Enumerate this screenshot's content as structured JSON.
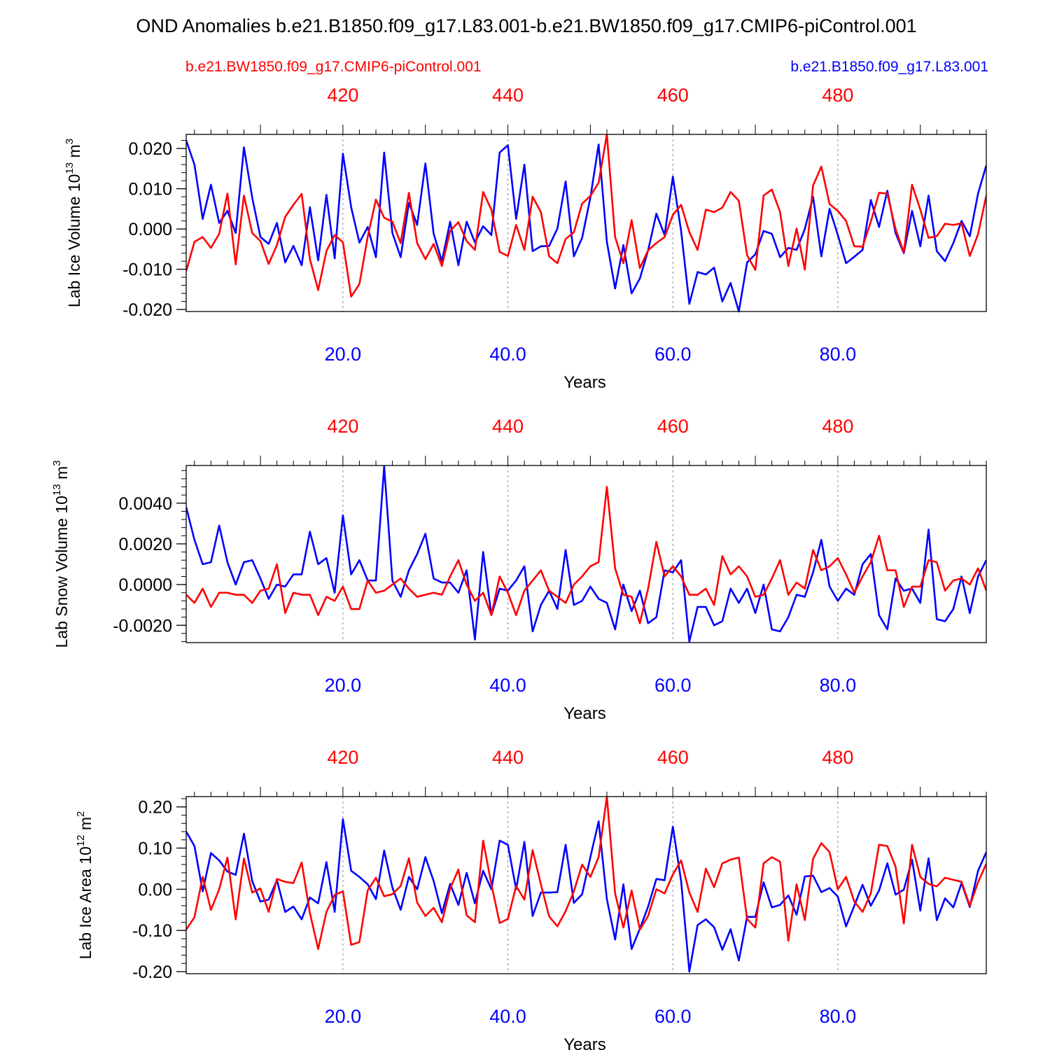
{
  "title": "OND Anomalies b.e21.B1850.f09_g17.L83.001-b.e21.BW1850.f09_g17.CMIP6-piControl.001",
  "legend": {
    "red_label": "b.e21.BW1850.f09_g17.CMIP6-piControl.001",
    "blue_label": "b.e21.B1850.f09_g17.L83.001"
  },
  "colors": {
    "red": "#ff0000",
    "blue": "#0000ff",
    "axis": "#000000",
    "grid": "#888888"
  },
  "chart_data": [
    {
      "type": "line",
      "ylabel_base": "Lab Ice Volume 10",
      "ylabel_exp": "13",
      "ylabel_unit": " m",
      "ylabel_unit_exp": "3",
      "xlabel": "Years",
      "xlim": [
        1,
        98
      ],
      "ylim": [
        -0.0205,
        0.0235
      ],
      "yticks": [
        -0.02,
        -0.01,
        0.0,
        0.01,
        0.02
      ],
      "yticklabels": [
        "-0.020",
        "-0.010",
        "0.000",
        "0.010",
        "0.020"
      ],
      "xticks_bottom": [
        20,
        40,
        60,
        80
      ],
      "xticklabels_bottom": [
        "20.0",
        "40.0",
        "60.0",
        "80.0"
      ],
      "xticklabels_top": [
        "420",
        "440",
        "460",
        "480"
      ],
      "series": [
        {
          "name": "b.e21.B1850.f09_g17.L83.001",
          "color": "blue",
          "values": [
            0.022,
            0.016,
            0.0025,
            0.011,
            0.0015,
            0.0045,
            -0.001,
            0.0203,
            0.0078,
            -0.002,
            -0.0037,
            0.0015,
            -0.0083,
            -0.0042,
            -0.009,
            0.0054,
            -0.0078,
            0.0085,
            -0.0073,
            0.0187,
            0.0054,
            -0.0034,
            0.0005,
            -0.007,
            0.019,
            -0.001,
            -0.007,
            0.0065,
            0.001,
            0.0163,
            -0.0012,
            -0.008,
            0.0018,
            -0.009,
            0.0018,
            -0.0033,
            0.0007,
            -0.0015,
            0.019,
            0.0208,
            0.0025,
            0.016,
            -0.0055,
            -0.0043,
            -0.0042,
            0.0001,
            0.0118,
            -0.0068,
            -0.0022,
            0.0078,
            0.021,
            -0.0032,
            -0.0148,
            -0.004,
            -0.016,
            -0.0123,
            -0.0053,
            0.0038,
            -0.0015,
            0.013,
            -0.0005,
            -0.0186,
            -0.0107,
            -0.0113,
            -0.0096,
            -0.018,
            -0.0134,
            -0.0205,
            -0.0083,
            -0.0063,
            -0.0005,
            -0.0012,
            -0.007,
            -0.0047,
            -0.0052,
            0.0,
            0.008,
            -0.0068,
            0.005,
            -0.0015,
            -0.0085,
            -0.0069,
            -0.0052,
            0.0072,
            0.0005,
            0.0095,
            -0.001,
            -0.006,
            0.0045,
            -0.0043,
            0.0083,
            -0.0055,
            -0.008,
            -0.0035,
            0.002,
            -0.0018,
            0.0088,
            0.0158
          ]
        },
        {
          "name": "b.e21.BW1850.f09_g17.CMIP6-piControl.001",
          "color": "red",
          "values": [
            -0.0105,
            -0.0032,
            -0.002,
            -0.0047,
            -0.0012,
            0.0088,
            -0.0088,
            0.0083,
            -0.001,
            -0.003,
            -0.0087,
            -0.004,
            0.003,
            0.006,
            0.0087,
            -0.0075,
            -0.0152,
            -0.0055,
            -0.0015,
            -0.0033,
            -0.0168,
            -0.0137,
            -0.002,
            0.0073,
            0.0028,
            0.0018,
            -0.0035,
            0.009,
            -0.0035,
            -0.0075,
            -0.0037,
            -0.0092,
            -0.0005,
            0.0017,
            -0.003,
            -0.0052,
            0.0092,
            0.0048,
            -0.0057,
            -0.0067,
            0.001,
            -0.0052,
            0.008,
            0.0042,
            -0.0068,
            -0.0085,
            -0.0025,
            -0.0008,
            0.0063,
            0.0082,
            0.0115,
            0.0235,
            -0.002,
            -0.0085,
            0.0022,
            -0.0097,
            -0.0053,
            -0.0035,
            -0.002,
            0.0035,
            0.006,
            -0.0008,
            -0.0052,
            0.0048,
            0.0042,
            0.0053,
            0.0092,
            0.007,
            -0.0065,
            -0.0102,
            0.0083,
            0.0098,
            0.0042,
            -0.0092,
            0.0001,
            -0.0101,
            0.0108,
            0.0155,
            0.0062,
            0.0045,
            0.002,
            -0.0043,
            -0.0044,
            0.0018,
            0.009,
            0.0088,
            0.0,
            -0.0058,
            0.011,
            0.0048,
            -0.0022,
            -0.0018,
            0.0013,
            0.001,
            0.0014,
            -0.0067,
            -0.0013,
            0.0083
          ]
        }
      ]
    },
    {
      "type": "line",
      "ylabel_base": "Lab Snow Volume 10",
      "ylabel_exp": "13",
      "ylabel_unit": " m",
      "ylabel_unit_exp": "3",
      "xlabel": "Years",
      "xlim": [
        1,
        98
      ],
      "ylim": [
        -0.00285,
        0.00585
      ],
      "yticks": [
        -0.002,
        0.0,
        0.002,
        0.004
      ],
      "yticklabels": [
        "-0.0020",
        "0.0000",
        "0.0020",
        "0.0040"
      ],
      "xticks_bottom": [
        20,
        40,
        60,
        80
      ],
      "xticklabels_bottom": [
        "20.0",
        "40.0",
        "60.0",
        "80.0"
      ],
      "xticklabels_top": [
        "420",
        "440",
        "460",
        "480"
      ],
      "series": [
        {
          "name": "b.e21.B1850.f09_g17.L83.001",
          "color": "blue",
          "values": [
            0.0038,
            0.0022,
            0.001,
            0.0011,
            0.0029,
            0.0011,
            0.0,
            0.0011,
            0.0012,
            0.0003,
            -0.0007,
            0.0,
            -0.0001,
            0.0005,
            0.0005,
            0.0026,
            0.001,
            0.0013,
            -0.0004,
            0.0034,
            0.0005,
            0.0012,
            0.0002,
            0.0002,
            0.0058,
            0.0002,
            -0.0006,
            0.0007,
            0.0015,
            0.0025,
            0.0003,
            0.0001,
            0.0001,
            -0.0004,
            0.0007,
            -0.0027,
            0.0016,
            -0.0015,
            -0.0002,
            -0.0003,
            0.0002,
            0.0009,
            -0.0023,
            -0.001,
            -0.0003,
            -0.0012,
            0.0017,
            -0.001,
            -0.0008,
            -0.0001,
            -0.0007,
            -0.0009,
            -0.0022,
            0.0,
            -0.0013,
            -0.0003,
            -0.0019,
            -0.0016,
            0.0007,
            0.0006,
            0.0012,
            -0.0028,
            -0.0011,
            -0.0011,
            -0.002,
            -0.0018,
            -0.0002,
            -0.0009,
            -0.0002,
            -0.0014,
            0.0,
            -0.0022,
            -0.0023,
            -0.0016,
            -0.0005,
            -0.0006,
            0.0006,
            0.0022,
            -0.0001,
            -0.0008,
            -0.0002,
            -0.0005,
            0.001,
            0.0015,
            -0.0015,
            -0.0022,
            0.0003,
            -0.0003,
            -0.0002,
            -0.0009,
            0.0027,
            -0.0017,
            -0.0018,
            -0.0012,
            0.0004,
            -0.0014,
            0.0004,
            0.0012
          ]
        },
        {
          "name": "b.e21.BW1850.f09_g17.CMIP6-piControl.001",
          "color": "red",
          "values": [
            -0.0005,
            -0.0009,
            -0.0002,
            -0.0011,
            -0.0004,
            -0.0004,
            -0.0005,
            -0.0005,
            -0.0009,
            -0.0003,
            -0.0002,
            0.001,
            -0.0014,
            -0.0004,
            -0.0005,
            -0.0005,
            -0.0015,
            -0.0006,
            -0.0008,
            -0.0001,
            -0.0012,
            -0.0012,
            0.0002,
            -0.0004,
            -0.0003,
            0.0,
            0.0003,
            -0.0002,
            -0.0006,
            -0.0005,
            -0.0004,
            -0.0005,
            0.0004,
            0.0012,
            0.0,
            -0.0008,
            -0.0004,
            -0.0015,
            0.0004,
            -0.0004,
            -0.0015,
            -0.0003,
            0.0002,
            0.0007,
            -0.0003,
            -0.0006,
            -0.0009,
            0.0,
            0.0004,
            0.0009,
            0.0011,
            0.0048,
            0.0008,
            -0.0005,
            -0.0006,
            -0.0019,
            -0.0002,
            0.0021,
            0.0004,
            0.0009,
            0.0004,
            -0.0005,
            -0.0005,
            -0.0002,
            -0.001,
            0.0014,
            0.0005,
            0.0009,
            0.0004,
            -0.0006,
            -0.0005,
            0.0003,
            0.0012,
            -0.0005,
            0.0001,
            -0.0002,
            0.0017,
            0.0007,
            0.0009,
            0.0013,
            0.0005,
            -0.0004,
            0.0004,
            0.0011,
            0.0024,
            0.0007,
            0.0007,
            -0.0011,
            -0.0001,
            -0.0001,
            0.0012,
            0.0011,
            -0.0003,
            0.0002,
            0.0003,
            0.0,
            0.0008,
            -0.0003
          ]
        }
      ]
    },
    {
      "type": "line",
      "ylabel_base": "Lab Ice Area 10",
      "ylabel_exp": "12",
      "ylabel_unit": " m",
      "ylabel_unit_exp": "2",
      "xlabel": "Years",
      "xlim": [
        1,
        98
      ],
      "ylim": [
        -0.205,
        0.225
      ],
      "yticks": [
        -0.2,
        -0.1,
        0.0,
        0.1,
        0.2
      ],
      "yticklabels": [
        "-0.20",
        "-0.10",
        "0.00",
        "0.10",
        "0.20"
      ],
      "xticks_bottom": [
        20,
        40,
        60,
        80
      ],
      "xticklabels_bottom": [
        "20.0",
        "40.0",
        "60.0",
        "80.0"
      ],
      "xticklabels_top": [
        "420",
        "440",
        "460",
        "480"
      ],
      "series": [
        {
          "name": "b.e21.B1850.f09_g17.L83.001",
          "color": "blue",
          "values": [
            0.14,
            0.105,
            -0.005,
            0.088,
            0.07,
            0.043,
            0.035,
            0.135,
            0.02,
            -0.03,
            -0.025,
            0.022,
            -0.055,
            -0.042,
            -0.073,
            -0.02,
            -0.034,
            0.066,
            -0.055,
            0.17,
            0.045,
            0.03,
            0.012,
            -0.024,
            0.094,
            0.004,
            -0.05,
            0.03,
            0.0,
            0.078,
            0.02,
            -0.058,
            0.013,
            -0.038,
            0.04,
            -0.034,
            0.045,
            0.0,
            0.118,
            0.108,
            0.0,
            0.115,
            -0.065,
            -0.008,
            -0.008,
            -0.007,
            0.108,
            -0.033,
            -0.012,
            0.078,
            0.165,
            -0.024,
            -0.122,
            0.012,
            -0.145,
            -0.096,
            -0.042,
            0.025,
            0.022,
            0.152,
            0.02,
            -0.2,
            -0.087,
            -0.073,
            -0.092,
            -0.147,
            -0.097,
            -0.173,
            -0.067,
            -0.067,
            0.017,
            -0.044,
            -0.038,
            -0.015,
            -0.062,
            0.031,
            0.033,
            -0.007,
            0.003,
            -0.018,
            -0.09,
            -0.04,
            0.011,
            -0.04,
            -0.003,
            0.063,
            -0.013,
            -0.001,
            0.072,
            -0.052,
            0.075,
            -0.075,
            -0.022,
            -0.044,
            0.015,
            -0.043,
            0.045,
            0.09
          ]
        },
        {
          "name": "b.e21.BW1850.f09_g17.CMIP6-piControl.001",
          "color": "red",
          "values": [
            -0.098,
            -0.068,
            0.03,
            -0.05,
            0.0,
            0.077,
            -0.073,
            0.075,
            -0.008,
            0.002,
            -0.055,
            0.025,
            0.018,
            0.015,
            0.065,
            -0.058,
            -0.145,
            -0.055,
            -0.014,
            -0.005,
            -0.135,
            -0.128,
            -0.003,
            0.028,
            -0.017,
            -0.012,
            0.008,
            0.075,
            -0.032,
            -0.065,
            -0.045,
            -0.08,
            0.002,
            0.048,
            -0.063,
            -0.08,
            0.118,
            0.012,
            -0.082,
            -0.072,
            0.008,
            -0.025,
            0.095,
            0.012,
            -0.066,
            -0.09,
            -0.053,
            -0.005,
            0.06,
            0.03,
            0.078,
            0.225,
            -0.01,
            -0.093,
            -0.003,
            -0.098,
            -0.065,
            0.0,
            -0.01,
            0.036,
            0.07,
            -0.008,
            -0.055,
            0.05,
            0.005,
            0.063,
            0.072,
            0.077,
            -0.072,
            -0.093,
            0.063,
            0.078,
            0.067,
            -0.125,
            0.012,
            -0.075,
            0.074,
            0.112,
            0.09,
            0.0,
            0.03,
            -0.03,
            -0.055,
            -0.01,
            0.108,
            0.105,
            0.055,
            -0.083,
            0.108,
            0.03,
            0.013,
            0.007,
            0.028,
            0.023,
            0.018,
            -0.04,
            0.017,
            0.062
          ]
        }
      ]
    }
  ]
}
